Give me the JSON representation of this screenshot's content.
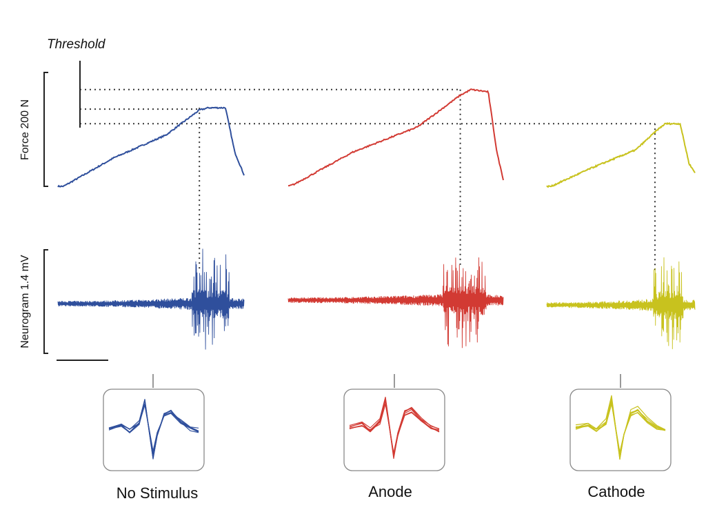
{
  "chart_data": {
    "type": "line",
    "threshold_label": "Threshold",
    "force_label": "Force 200 N",
    "neurogram_label": "Neurogram 1.4 mV",
    "conditions": [
      {
        "name": "No Stimulus",
        "color": "#2f4f9c",
        "force_profile": [
          [
            0,
            0
          ],
          [
            0.03,
            0
          ],
          [
            0.3,
            0.25
          ],
          [
            0.58,
            0.45
          ],
          [
            0.76,
            0.67
          ],
          [
            0.81,
            0.69
          ],
          [
            0.9,
            0.69
          ],
          [
            0.95,
            0.3
          ],
          [
            1,
            0.1
          ]
        ],
        "peak_force_fraction": 0.69
      },
      {
        "name": "Anode",
        "color": "#d23a33",
        "force_profile": [
          [
            0,
            0
          ],
          [
            0.03,
            0.02
          ],
          [
            0.3,
            0.3
          ],
          [
            0.6,
            0.52
          ],
          [
            0.8,
            0.8
          ],
          [
            0.85,
            0.85
          ],
          [
            0.93,
            0.83
          ],
          [
            0.97,
            0.3
          ],
          [
            1,
            0.06
          ]
        ],
        "peak_force_fraction": 0.85
      },
      {
        "name": "Cathode",
        "color": "#c8c21e",
        "force_profile": [
          [
            0,
            0
          ],
          [
            0.03,
            0
          ],
          [
            0.3,
            0.16
          ],
          [
            0.6,
            0.32
          ],
          [
            0.75,
            0.5
          ],
          [
            0.8,
            0.55
          ],
          [
            0.9,
            0.55
          ],
          [
            0.96,
            0.2
          ],
          [
            1,
            0.12
          ]
        ],
        "peak_force_fraction": 0.55
      }
    ]
  }
}
